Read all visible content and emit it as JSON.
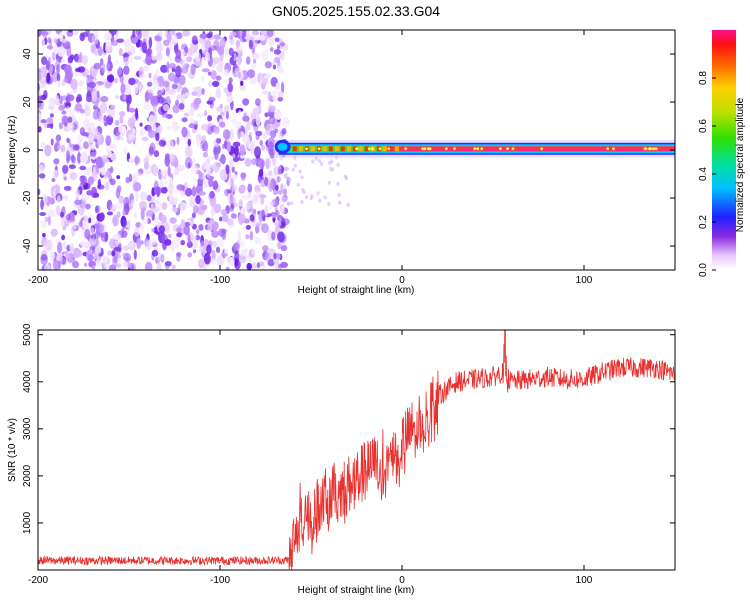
{
  "title": "GN05.2025.155.02.33.G04",
  "chart_data": [
    {
      "type": "heatmap",
      "xlabel": "Height of straight line (km)",
      "ylabel": "Frequency (Hz)",
      "xlim": [
        -200,
        150
      ],
      "ylim": [
        -50,
        50
      ],
      "x_ticks": [
        -200,
        -100,
        0,
        100
      ],
      "y_ticks": [
        -40,
        -20,
        0,
        20,
        40
      ],
      "x_tick_labels": [
        "-200",
        "-100",
        "0",
        "100"
      ],
      "y_tick_labels": [
        "-40",
        "-20",
        "0",
        "20",
        "40"
      ],
      "noise_region_x": [
        -200,
        -68
      ],
      "line_region_x": [
        -70,
        150
      ],
      "line_frequency": 0.5,
      "colorbar": {
        "label": "Normalized spectral amplitude",
        "range": [
          0.0,
          1.0
        ],
        "ticks": [
          0.0,
          0.2,
          0.4,
          0.6,
          0.8
        ],
        "tick_labels": [
          "0.0",
          "0.2",
          "0.4",
          "0.6",
          "0.8"
        ]
      },
      "grid": false
    },
    {
      "type": "line",
      "xlabel": "Height of straight line (km)",
      "ylabel": "SNR (10 * v/v)",
      "xlim": [
        -200,
        150
      ],
      "ylim": [
        0,
        5100
      ],
      "x_ticks": [
        -200,
        -100,
        0,
        100
      ],
      "y_ticks": [
        1000,
        2000,
        3000,
        4000,
        5000
      ],
      "x_tick_labels": [
        "-200",
        "-100",
        "0",
        "100"
      ],
      "y_tick_labels": [
        "1000",
        "2000",
        "3000",
        "4000",
        "5000"
      ],
      "series_color": "#e8302e",
      "x": [
        -200,
        -150,
        -100,
        -80,
        -62,
        -55,
        -50,
        -40,
        -30,
        -20,
        -10,
        0,
        10,
        20,
        30,
        40,
        50,
        55,
        60,
        70,
        80,
        90,
        100,
        110,
        120,
        130,
        140,
        150
      ],
      "y": [
        200,
        200,
        200,
        200,
        210,
        1400,
        1200,
        1600,
        1800,
        2100,
        2400,
        2700,
        3200,
        3700,
        4000,
        4050,
        4100,
        4200,
        4000,
        4050,
        4100,
        4050,
        4050,
        4200,
        4300,
        4300,
        4300,
        4150
      ],
      "grid": false
    }
  ]
}
